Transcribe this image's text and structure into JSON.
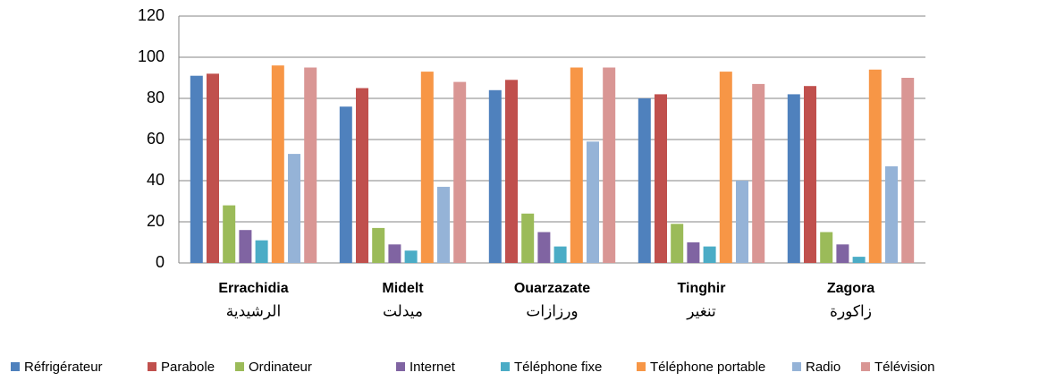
{
  "chart_data": {
    "type": "bar",
    "categories": [
      "Errachidia",
      "Midelt",
      "Ouarzazate",
      "Tinghir",
      "Zagora"
    ],
    "category_subtitles": [
      "الرشيدية",
      "ميدلت",
      "ورزازات",
      "تنغير",
      "زاكورة"
    ],
    "series": [
      {
        "name": "Réfrigérateur",
        "color": "#4f81bd",
        "values": [
          91,
          76,
          84,
          80,
          82
        ]
      },
      {
        "name": "Parabole",
        "color": "#c0504d",
        "values": [
          92,
          85,
          89,
          82,
          86
        ]
      },
      {
        "name": "Ordinateur",
        "color": "#9bbb59",
        "values": [
          28,
          17,
          24,
          19,
          15
        ]
      },
      {
        "name": "Internet",
        "color": "#8064a2",
        "values": [
          16,
          9,
          15,
          10,
          9
        ]
      },
      {
        "name": "Téléphone fixe",
        "color": "#4bacc6",
        "values": [
          11,
          6,
          8,
          8,
          3
        ]
      },
      {
        "name": "Téléphone portable",
        "color": "#f79646",
        "values": [
          96,
          93,
          95,
          93,
          94
        ]
      },
      {
        "name": "Radio",
        "color": "#95b3d7",
        "values": [
          53,
          37,
          59,
          40,
          47
        ]
      },
      {
        "name": "Télévision",
        "color": "#d99694",
        "values": [
          95,
          88,
          95,
          87,
          90
        ]
      }
    ],
    "ylim": [
      0,
      120
    ],
    "yticks": [
      0,
      20,
      40,
      60,
      80,
      100,
      120
    ],
    "grid": true,
    "legend": "bottom"
  }
}
